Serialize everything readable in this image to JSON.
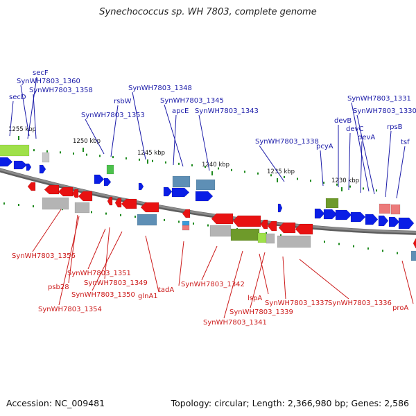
{
  "title": "Synechococcus sp. WH 7803, complete genome",
  "footer": {
    "accession": "Accession: NC_009481",
    "summary": "Topology: circular; Length: 2,366,980 bp; Genes: 2,586"
  },
  "colors": {
    "forward_gene": "#0a1ee6",
    "reverse_gene": "#e81212",
    "forward_label": "#1a1aa8",
    "reverse_label": "#cc1a1a",
    "backbone": "#8a8a8a",
    "tick": "#1e8a1e"
  },
  "ticks": [
    "1255 kbp",
    "1250 kbp",
    "1245 kbp",
    "1240 kbp",
    "1235 kbp",
    "1230 kbp"
  ],
  "forward_labels": [
    "secF",
    "SynWH7803_1360",
    "SynWH7803_1358",
    "secD",
    "rsbW",
    "SynWH7803_1353",
    "SynWH7803_1348",
    "SynWH7803_1345",
    "apcE",
    "SynWH7803_1343",
    "SynWH7803_1338",
    "pcyA",
    "devB",
    "devC",
    "devA",
    "SynWH7803_1331",
    "SynWH7803_1330",
    "rpsB",
    "tsf"
  ],
  "reverse_labels": [
    "SynWH7803_1356",
    "psb28",
    "SynWH7803_1354",
    "SynWH7803_1351",
    "SynWH7803_1349",
    "SynWH7803_1350",
    "glnA1",
    "tadA",
    "SynWH7803_1342",
    "SynWH7803_1341",
    "lspA",
    "SynWH7803_1339",
    "SynWH7803_1337",
    "SynWH7803_1336",
    "proA"
  ]
}
